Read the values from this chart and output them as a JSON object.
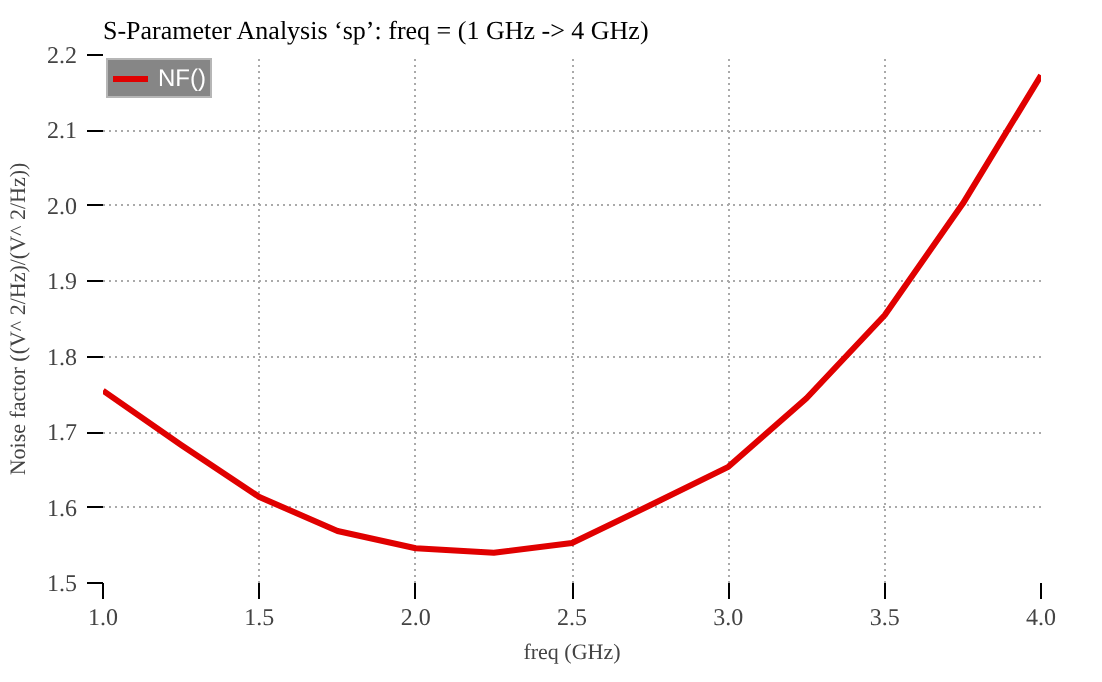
{
  "chart_data": {
    "type": "line",
    "title": "S-Parameter Analysis ‘sp’: freq = (1 GHz -> 4 GHz)",
    "xlabel": "freq (GHz)",
    "ylabel": "Noise factor ((V^ 2/Hz)/(V^ 2/Hz))",
    "x": [
      1.0,
      1.25,
      1.5,
      1.75,
      2.0,
      2.25,
      2.5,
      2.75,
      3.0,
      3.25,
      3.5,
      3.75,
      4.0
    ],
    "series": [
      {
        "name": "NF()",
        "color": "#e00000",
        "values": [
          1.755,
          1.683,
          1.614,
          1.569,
          1.546,
          1.54,
          1.553,
          1.603,
          1.654,
          1.745,
          1.855,
          2.003,
          2.173
        ]
      }
    ],
    "xlim": [
      1.0,
      4.0
    ],
    "ylim": [
      1.5,
      2.2
    ],
    "xticks": [
      {
        "value": 1,
        "label": "1.0"
      },
      1.5,
      {
        "value": 2,
        "label": "2.0"
      },
      2.5,
      {
        "value": 3,
        "label": "3.0"
      },
      3.5,
      {
        "value": 4,
        "label": "4.0"
      }
    ],
    "yticks": [
      1.5,
      1.6,
      1.7,
      1.8,
      1.9,
      {
        "value": 2,
        "label": "2.0"
      },
      2.1,
      2.2
    ],
    "grid": true,
    "legend": "top left",
    "marker": "none",
    "line_style": "solid"
  }
}
